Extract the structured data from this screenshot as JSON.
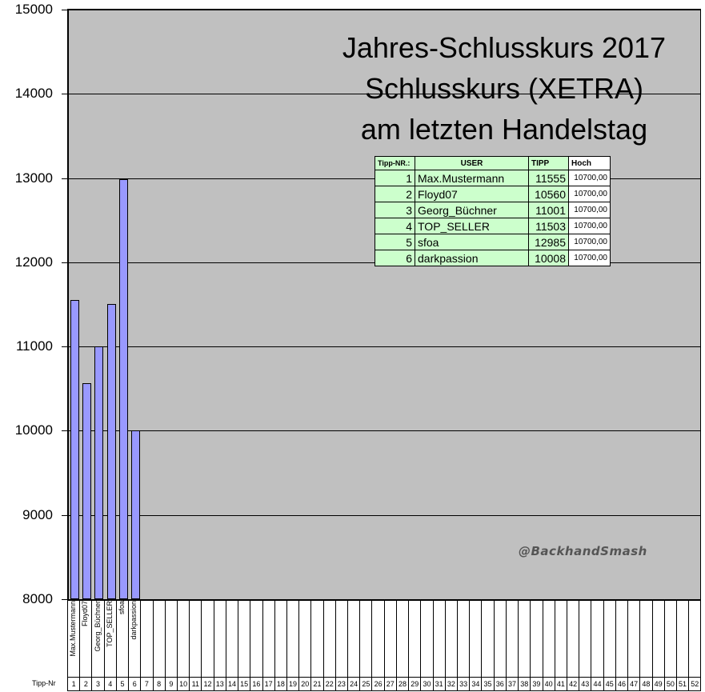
{
  "chart_data": {
    "type": "bar",
    "title": "Jahres-Schlusskurs 2017 Schlusskurs (XETRA) am letzten Handelstag",
    "title_lines": [
      "Jahres-Schlusskurs 2017",
      "Schlusskurs (XETRA)",
      "am letzten Handelstag"
    ],
    "categories": [
      1,
      2,
      3,
      4,
      5,
      6,
      7,
      8,
      9,
      10,
      11,
      12,
      13,
      14,
      15,
      16,
      17,
      18,
      19,
      20,
      21,
      22,
      23,
      24,
      25,
      26,
      27,
      28,
      29,
      30,
      31,
      32,
      33,
      34,
      35,
      36,
      37,
      38,
      39,
      40,
      41,
      42,
      43,
      44,
      45,
      46,
      47,
      48,
      49,
      50,
      51,
      52
    ],
    "bar_labels": [
      "Max.Mustermann",
      "Floyd07",
      "Georg_Büchner",
      "TOP_SELLER",
      "sfoa",
      "darkpassion"
    ],
    "values": [
      11555,
      10560,
      11001,
      11503,
      12985,
      10008
    ],
    "ylim": [
      8000,
      15000
    ],
    "yticks": [
      8000,
      9000,
      10000,
      11000,
      12000,
      13000,
      14000,
      15000
    ],
    "xlabel": "Tipp-Nr",
    "grid": true,
    "legend": false,
    "bar_color": "#9999ff",
    "plot_bg": "#c0c0c0"
  },
  "table": {
    "headers": [
      "Tipp-NR.:",
      "USER",
      "TIPP",
      "Hoch"
    ],
    "rows": [
      [
        "1",
        "Max.Mustermann",
        "11555",
        "10700,00"
      ],
      [
        "2",
        "Floyd07",
        "10560",
        "10700,00"
      ],
      [
        "3",
        "Georg_Büchner",
        "11001",
        "10700,00"
      ],
      [
        "4",
        "TOP_SELLER",
        "11503",
        "10700,00"
      ],
      [
        "5",
        "sfoa",
        "12985",
        "10700,00"
      ],
      [
        "6",
        "darkpassion",
        "10008",
        "10700,00"
      ]
    ]
  },
  "watermark": "@BackhandSmash"
}
